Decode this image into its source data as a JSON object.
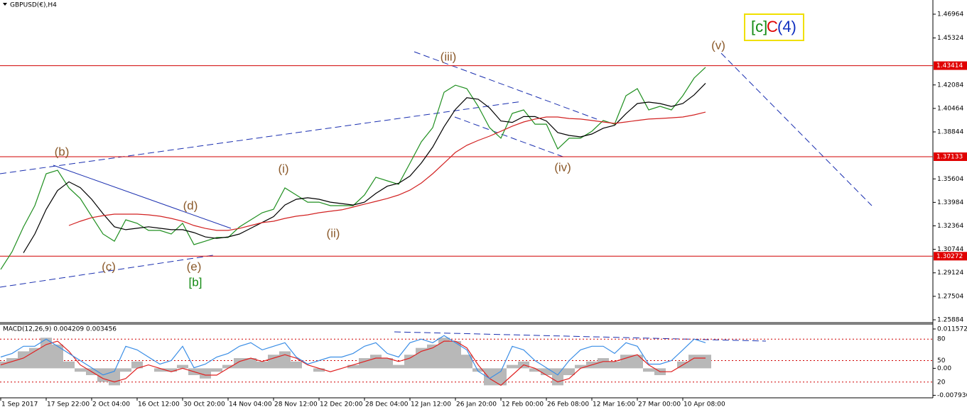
{
  "chart_data": [
    {
      "type": "line",
      "title": "GBPUSD(€),H4",
      "categories": [
        "1 Sep 2017",
        null,
        null,
        null,
        "17 Sep 22:00",
        null,
        null,
        null,
        "2 Oct 04:00",
        null,
        null,
        null,
        "16 Oct 12:00",
        null,
        null,
        null,
        "30 Oct 20:00",
        null,
        null,
        null,
        "14 Nov 04:00",
        null,
        null,
        null,
        "28 Nov 12:00",
        null,
        null,
        null,
        "12 Dec 20:00",
        null,
        null,
        null,
        "28 Dec 04:00",
        null,
        null,
        null,
        "12 Jan 12:00",
        null,
        null,
        null,
        "26 Jan 20:00",
        null,
        null,
        null,
        "12 Feb 00:00",
        null,
        null,
        null,
        "26 Feb 08:00",
        null,
        null,
        null,
        "12 Mar 16:00",
        null,
        null,
        null,
        "27 Mar 00:00",
        null,
        null,
        null,
        "10 Apr 08:00",
        null,
        null
      ],
      "series": [
        {
          "color": "#1f8f1f",
          "values": [
            1.2936,
            1.3058,
            1.3229,
            1.3376,
            1.3596,
            1.362,
            1.3498,
            1.3425,
            1.3302,
            1.318,
            1.3131,
            1.3278,
            1.3254,
            1.3205,
            1.3205,
            1.318,
            1.3254,
            1.3107,
            1.3131,
            1.3156,
            1.3156,
            1.3229,
            1.3278,
            1.3327,
            1.3351,
            1.3498,
            1.3449,
            1.34,
            1.34,
            1.3376,
            1.3376,
            1.3376,
            1.3449,
            1.3572,
            1.3547,
            1.3523,
            1.3669,
            1.3816,
            1.3914,
            1.4158,
            1.4207,
            1.4183,
            1.4061,
            1.3914,
            1.3841,
            1.4012,
            1.4036,
            1.3938,
            1.3938,
            1.3767,
            1.3841,
            1.3841,
            1.3889,
            1.3963,
            1.3938,
            1.4134,
            1.4183,
            1.4036,
            1.4061,
            1.4036,
            1.4134,
            1.4256,
            1.433
          ]
        },
        {
          "color": "#000000",
          "values": [
            null,
            null,
            1.305,
            1.318,
            1.335,
            1.348,
            1.354,
            1.35,
            1.342,
            1.332,
            1.323,
            1.321,
            1.322,
            1.323,
            1.322,
            1.321,
            1.321,
            1.319,
            1.316,
            1.315,
            1.316,
            1.318,
            1.322,
            1.326,
            1.33,
            1.338,
            1.342,
            1.343,
            1.342,
            1.34,
            1.339,
            1.338,
            1.34,
            1.346,
            1.351,
            1.353,
            1.358,
            1.367,
            1.378,
            1.392,
            1.404,
            1.412,
            1.411,
            1.405,
            1.396,
            1.395,
            1.399,
            1.399,
            1.396,
            1.388,
            1.386,
            1.385,
            1.387,
            1.391,
            1.393,
            1.401,
            1.408,
            1.409,
            1.408,
            1.406,
            1.408,
            1.414,
            1.422
          ]
        },
        {
          "color": "#d22222",
          "values": [
            null,
            null,
            null,
            null,
            null,
            null,
            1.3239,
            1.3268,
            1.3293,
            1.3307,
            1.3317,
            1.3317,
            1.3317,
            1.3312,
            1.3303,
            1.3288,
            1.3268,
            1.3239,
            1.3219,
            1.3205,
            1.3205,
            1.3219,
            1.3239,
            1.3259,
            1.3268,
            1.3288,
            1.3303,
            1.3312,
            1.3327,
            1.3337,
            1.3347,
            1.3366,
            1.3386,
            1.3405,
            1.3425,
            1.3449,
            1.3483,
            1.3532,
            1.3596,
            1.3669,
            1.3743,
            1.3792,
            1.3826,
            1.3855,
            1.3889,
            1.3924,
            1.3953,
            1.3973,
            1.3987,
            1.3987,
            1.3977,
            1.3973,
            1.3963,
            1.3953,
            1.3943,
            1.3953,
            1.3963,
            1.3973,
            1.3977,
            1.3982,
            1.3987,
            1.4002,
            1.4021
          ]
        }
      ],
      "ylim": [
        1.25688,
        1.47942
      ],
      "yticks": [
        1.46964,
        1.45324,
        1.42084,
        1.40464,
        1.38844,
        1.35604,
        1.33984,
        1.32364,
        1.30744,
        1.29124,
        1.27504,
        1.25884
      ],
      "levels": [
        1.43414,
        1.37133,
        1.30272
      ],
      "annotations": [
        "(b)",
        "(c)",
        "(d)",
        "(e)",
        "[b]",
        "(i)",
        "(ii)",
        "(iii)",
        "(iv)",
        "(v)"
      ],
      "wave_box": [
        "[c]",
        "C",
        "(4)"
      ]
    },
    {
      "type": "macd",
      "title": "MACD(12,26,9) 0.004209 0.003456",
      "series": [
        {
          "color": "#b8b8b8",
          "values": [
            0.002,
            0.003,
            0.005,
            0.006,
            0.009,
            0.007,
            0.002,
            -0.001,
            -0.002,
            -0.004,
            -0.005,
            -0.001,
            0.002,
            0.0,
            -0.001,
            -0.001,
            0.001,
            -0.002,
            -0.003,
            -0.001,
            0.001,
            0.003,
            0.003,
            0.002,
            0.004,
            0.005,
            0.002,
            0.0,
            -0.001,
            0.0,
            0.0,
            0.001,
            0.003,
            0.004,
            0.003,
            0.001,
            0.004,
            0.006,
            0.007,
            0.009,
            0.008,
            0.004,
            -0.001,
            -0.005,
            -0.005,
            0.001,
            0.002,
            -0.001,
            -0.002,
            -0.005,
            -0.002,
            0.001,
            0.002,
            0.003,
            0.002,
            0.004,
            0.004,
            -0.001,
            -0.002,
            0.0,
            0.002,
            0.004,
            0.004
          ]
        },
        {
          "color": "#e02020",
          "values": [
            0.001,
            0.002,
            0.003,
            0.005,
            0.007,
            0.008,
            0.005,
            0.001,
            -0.001,
            -0.003,
            -0.004,
            -0.003,
            0.0,
            0.001,
            0.0,
            -0.001,
            0.0,
            -0.001,
            -0.002,
            -0.002,
            0.0,
            0.002,
            0.003,
            0.002,
            0.003,
            0.004,
            0.003,
            0.001,
            0.0,
            -0.001,
            0.0,
            0.001,
            0.002,
            0.003,
            0.003,
            0.002,
            0.003,
            0.005,
            0.006,
            0.008,
            0.008,
            0.006,
            0.001,
            -0.003,
            -0.005,
            -0.002,
            0.001,
            0.0,
            -0.002,
            -0.004,
            -0.003,
            0.0,
            0.001,
            0.002,
            0.002,
            0.003,
            0.004,
            0.001,
            -0.001,
            -0.001,
            0.001,
            0.003,
            0.003
          ]
        },
        {
          "color": "#3a8ee6",
          "axis": "y2",
          "values": [
            55,
            60,
            70,
            70,
            80,
            70,
            60,
            50,
            40,
            30,
            35,
            70,
            65,
            55,
            45,
            50,
            70,
            40,
            45,
            55,
            60,
            70,
            75,
            65,
            70,
            75,
            55,
            45,
            50,
            55,
            55,
            60,
            70,
            75,
            60,
            55,
            75,
            80,
            75,
            85,
            75,
            65,
            35,
            25,
            35,
            70,
            65,
            50,
            40,
            30,
            50,
            65,
            70,
            70,
            60,
            75,
            70,
            45,
            45,
            50,
            65,
            80,
            75
          ]
        }
      ],
      "ylim": [
        -0.00847,
        0.01302
      ],
      "yticks": [
        0.011572,
        {
          "value": 0,
          "label": "0.00"
        },
        -0.007936
      ],
      "y2lim": [
        -1,
        101
      ],
      "y2ticks": [
        80,
        50,
        20
      ]
    }
  ]
}
